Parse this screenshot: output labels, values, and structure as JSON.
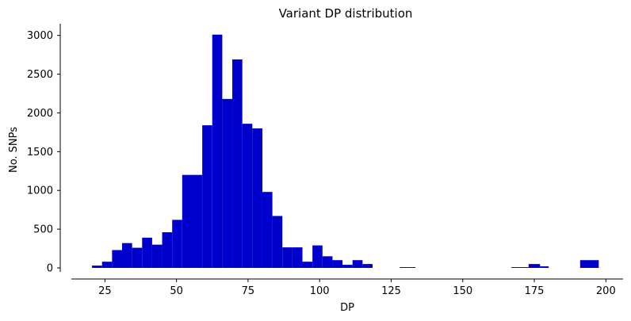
{
  "chart_data": {
    "type": "bar",
    "title": "Variant DP distribution",
    "xlabel": "DP",
    "ylabel": "No. SNPs",
    "xlim": [
      13,
      206
    ],
    "ylim": [
      0,
      3150
    ],
    "xticks": [
      25,
      50,
      75,
      100,
      125,
      150,
      175,
      200
    ],
    "yticks": [
      0,
      500,
      1000,
      1500,
      2000,
      2500,
      3000
    ],
    "bar_color": "#0000cc",
    "grid": false,
    "bins": [
      {
        "x0": 20.5,
        "x1": 24.0,
        "count": 30
      },
      {
        "x0": 24.0,
        "x1": 27.5,
        "count": 80
      },
      {
        "x0": 27.5,
        "x1": 31.0,
        "count": 230
      },
      {
        "x0": 31.0,
        "x1": 34.5,
        "count": 320
      },
      {
        "x0": 34.5,
        "x1": 38.0,
        "count": 260
      },
      {
        "x0": 38.0,
        "x1": 41.5,
        "count": 390
      },
      {
        "x0": 41.5,
        "x1": 45.0,
        "count": 300
      },
      {
        "x0": 45.0,
        "x1": 48.5,
        "count": 460
      },
      {
        "x0": 48.5,
        "x1": 52.0,
        "count": 620
      },
      {
        "x0": 52.0,
        "x1": 55.5,
        "count": 1200
      },
      {
        "x0": 55.5,
        "x1": 59.0,
        "count": 1200
      },
      {
        "x0": 59.0,
        "x1": 62.5,
        "count": 1840
      },
      {
        "x0": 62.5,
        "x1": 66.0,
        "count": 3010
      },
      {
        "x0": 66.0,
        "x1": 69.5,
        "count": 2180
      },
      {
        "x0": 69.5,
        "x1": 73.0,
        "count": 2690
      },
      {
        "x0": 73.0,
        "x1": 76.5,
        "count": 1860
      },
      {
        "x0": 76.5,
        "x1": 80.0,
        "count": 1800
      },
      {
        "x0": 80.0,
        "x1": 83.5,
        "count": 980
      },
      {
        "x0": 83.5,
        "x1": 87.0,
        "count": 670
      },
      {
        "x0": 87.0,
        "x1": 90.5,
        "count": 265
      },
      {
        "x0": 90.5,
        "x1": 94.0,
        "count": 265
      },
      {
        "x0": 94.0,
        "x1": 97.5,
        "count": 80
      },
      {
        "x0": 97.5,
        "x1": 101.0,
        "count": 290
      },
      {
        "x0": 101.0,
        "x1": 104.5,
        "count": 150
      },
      {
        "x0": 104.5,
        "x1": 108.0,
        "count": 100
      },
      {
        "x0": 108.0,
        "x1": 111.5,
        "count": 40
      },
      {
        "x0": 111.5,
        "x1": 115.0,
        "count": 100
      },
      {
        "x0": 115.0,
        "x1": 118.5,
        "count": 50
      },
      {
        "x0": 128.0,
        "x1": 133.5,
        "count": 10
      },
      {
        "x0": 167.0,
        "x1": 173.0,
        "count": 10
      },
      {
        "x0": 173.0,
        "x1": 177.0,
        "count": 50
      },
      {
        "x0": 177.0,
        "x1": 180.0,
        "count": 20
      },
      {
        "x0": 191.0,
        "x1": 197.5,
        "count": 100
      }
    ]
  }
}
